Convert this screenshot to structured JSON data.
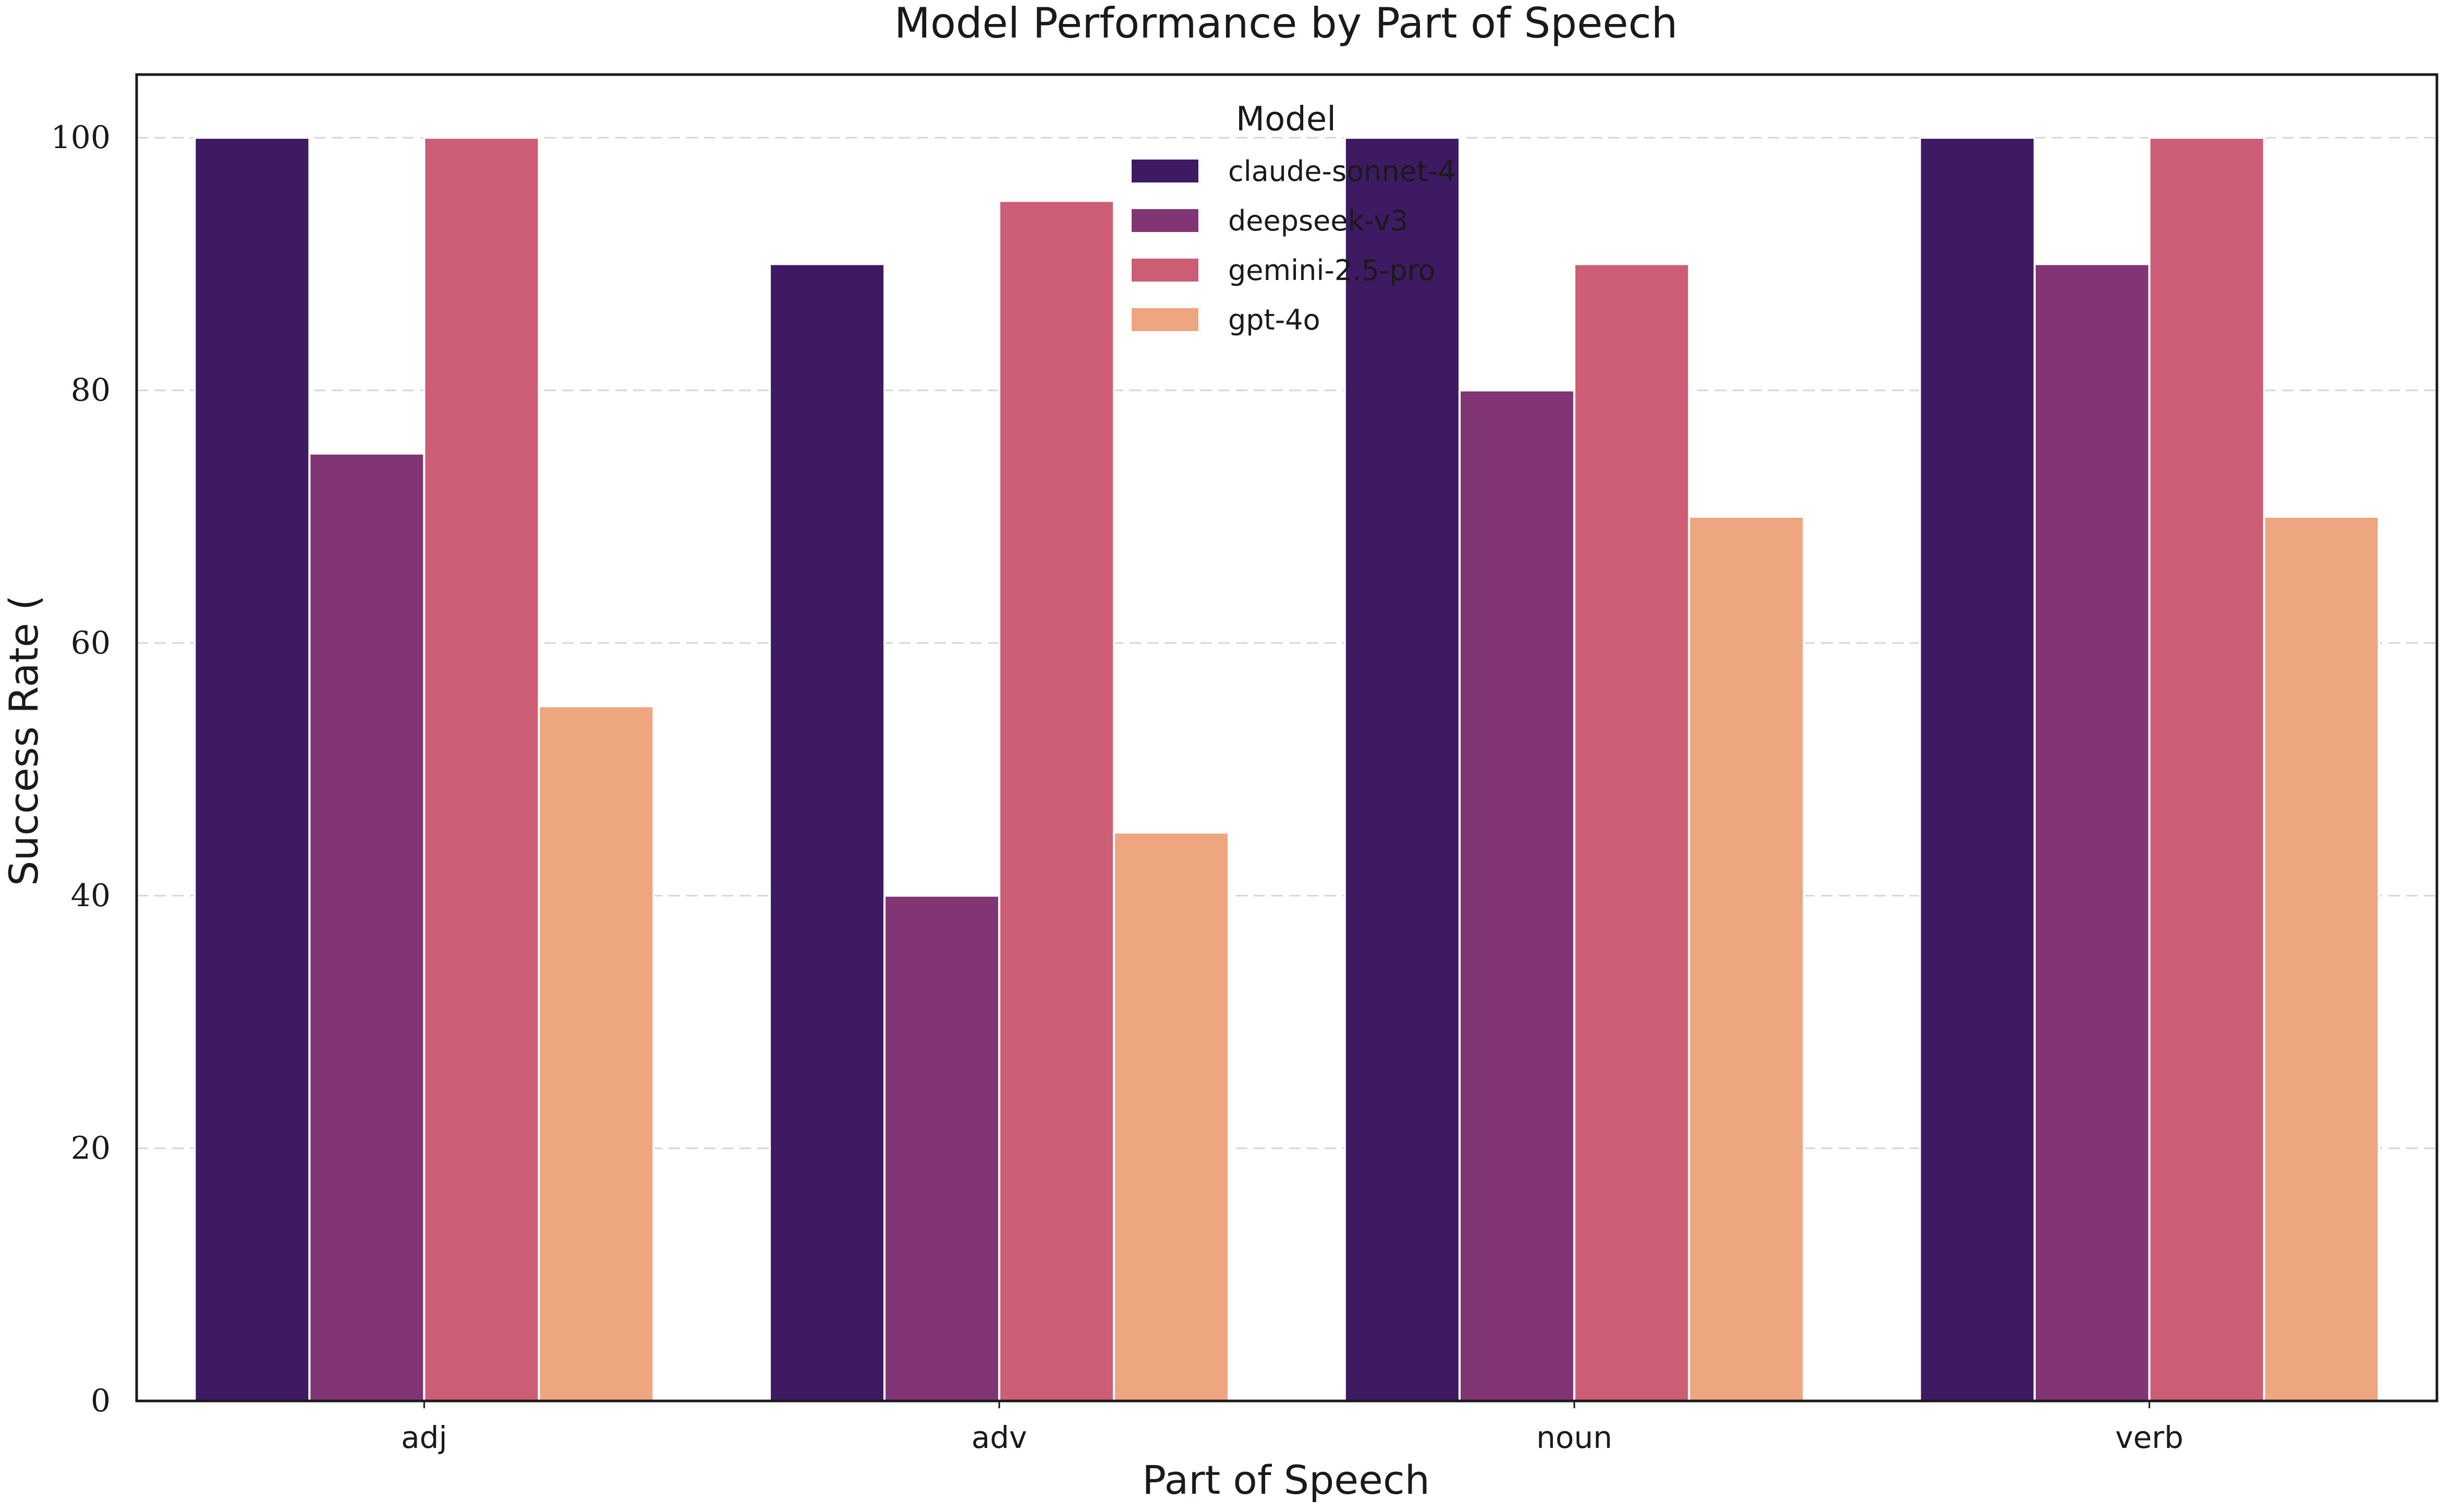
{
  "chart_data": {
    "type": "bar",
    "title": "Model Performance by Part of Speech",
    "xlabel": "Part of Speech",
    "ylabel": "Success Rate (",
    "categories": [
      "adj",
      "adv",
      "noun",
      "verb"
    ],
    "ylim": [
      0,
      105
    ],
    "yticks": [
      0,
      20,
      40,
      60,
      80,
      100
    ],
    "grid": "y-dashed",
    "legend": {
      "title": "Model",
      "placement": "top-center"
    },
    "series": [
      {
        "name": "claude-sonnet-4",
        "color": "#3d1a61",
        "values": [
          100,
          90,
          100,
          100
        ]
      },
      {
        "name": "deepseek-v3",
        "color": "#823575",
        "values": [
          75,
          40,
          80,
          90
        ]
      },
      {
        "name": "gemini-2.5-pro",
        "color": "#cc5d74",
        "values": [
          100,
          95,
          90,
          100
        ]
      },
      {
        "name": "gpt-4o",
        "color": "#eda67f",
        "values": [
          55,
          45,
          70,
          70
        ]
      }
    ]
  }
}
